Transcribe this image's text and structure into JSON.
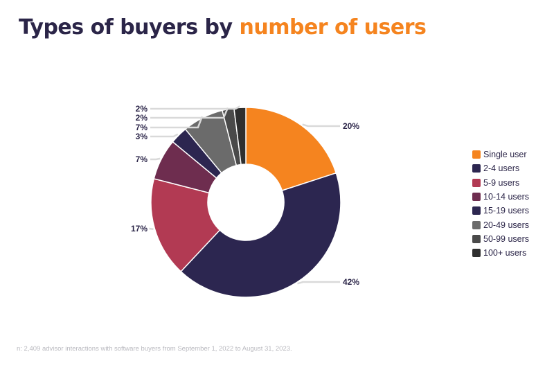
{
  "title": {
    "main": "Types of buyers by ",
    "highlight": "number of users"
  },
  "footnote": "n: 2,409 advisor interactions with software buyers from September 1, 2022 to August 31, 2023.",
  "colors": {
    "title": "#2b2548",
    "accent": "#f5841f",
    "leader": "#d9d9d9",
    "label": "#2b2548"
  },
  "chart_data": {
    "type": "pie",
    "variant": "donut",
    "title": "Types of buyers by number of users",
    "legend_position": "right",
    "slices": [
      {
        "label": "Single user",
        "value": 20,
        "display": "20%",
        "color": "#f5841f"
      },
      {
        "label": "2-4 users",
        "value": 42,
        "display": "42%",
        "color": "#2c2650"
      },
      {
        "label": "5-9 users",
        "value": 17,
        "display": "17%",
        "color": "#b23a53"
      },
      {
        "label": "10-14 users",
        "value": 7,
        "display": "7%",
        "color": "#6e2d4f"
      },
      {
        "label": "15-19 users",
        "value": 3,
        "display": "3%",
        "color": "#2c2650"
      },
      {
        "label": "20-49 users",
        "value": 7,
        "display": "7%",
        "color": "#6b6b6b"
      },
      {
        "label": "50-99 users",
        "value": 2,
        "display": "2%",
        "color": "#4a4a4a"
      },
      {
        "label": "100+ users",
        "value": 2,
        "display": "2%",
        "color": "#2f2f2f"
      }
    ]
  }
}
